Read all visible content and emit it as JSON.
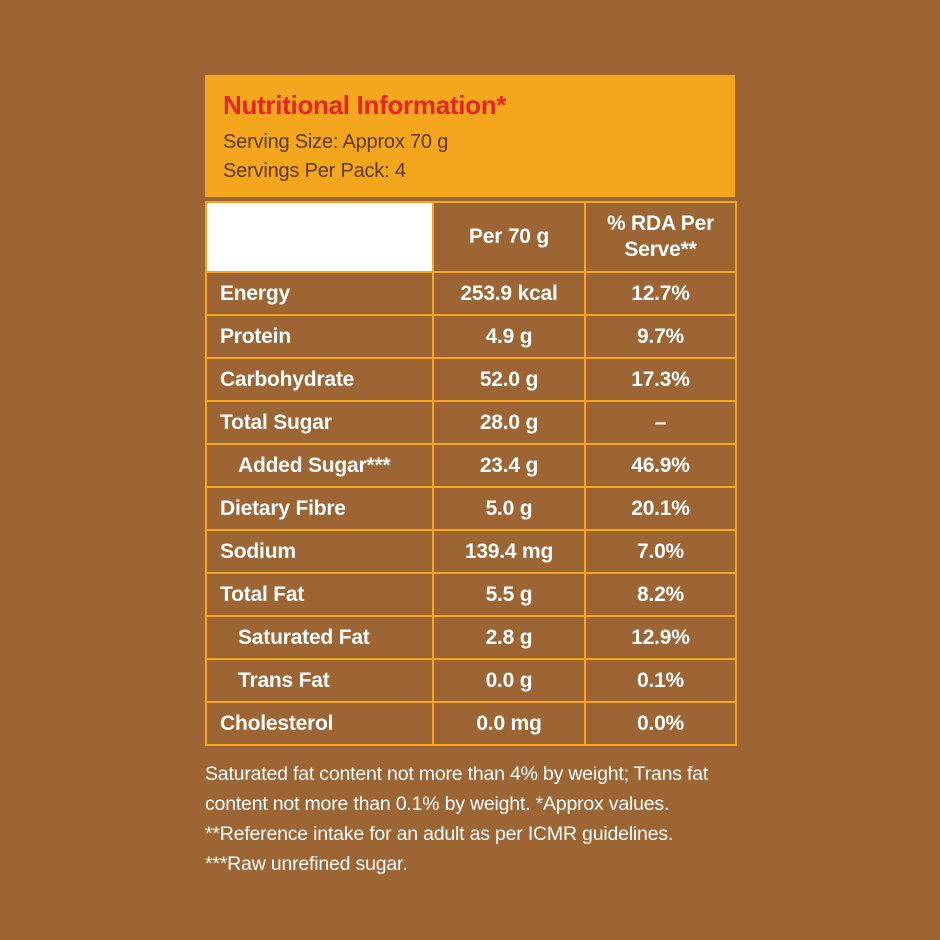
{
  "header": {
    "title": "Nutritional Information*",
    "serving_size": "Serving Size: Approx 70 g",
    "servings_per_pack": "Servings Per Pack: 4"
  },
  "table": {
    "headers": [
      "",
      "Per 70 g",
      "% RDA Per Serve**"
    ],
    "rows": [
      {
        "nutrient": "Energy",
        "value": "253.9 kcal",
        "rda": "12.7%",
        "indent": false
      },
      {
        "nutrient": "Protein",
        "value": "4.9 g",
        "rda": "9.7%",
        "indent": false
      },
      {
        "nutrient": "Carbohydrate",
        "value": "52.0 g",
        "rda": "17.3%",
        "indent": false
      },
      {
        "nutrient": "Total Sugar",
        "value": "28.0 g",
        "rda": "–",
        "indent": false
      },
      {
        "nutrient": "Added Sugar***",
        "value": "23.4 g",
        "rda": "46.9%",
        "indent": true
      },
      {
        "nutrient": "Dietary Fibre",
        "value": "5.0 g",
        "rda": "20.1%",
        "indent": false
      },
      {
        "nutrient": "Sodium",
        "value": "139.4 mg",
        "rda": "7.0%",
        "indent": false
      },
      {
        "nutrient": "Total Fat",
        "value": "5.5 g",
        "rda": "8.2%",
        "indent": false
      },
      {
        "nutrient": "Saturated Fat",
        "value": "2.8 g",
        "rda": "12.9%",
        "indent": true
      },
      {
        "nutrient": "Trans Fat",
        "value": "0.0 g",
        "rda": "0.1%",
        "indent": true
      },
      {
        "nutrient": "Cholesterol",
        "value": "0.0 mg",
        "rda": "0.0%",
        "indent": false
      }
    ]
  },
  "footnote": "Saturated fat content not more than 4% by weight; Trans fat content not more than 0.1% by weight. *Approx values. **Reference intake for an adult as per ICMR guidelines. ***Raw unrefined sugar.",
  "colors": {
    "background": "#9C6533",
    "accent_yellow": "#F4A61C",
    "title_red": "#E52528",
    "header_text_dark": "#5C3A15",
    "table_text_white": "#FFFFFF"
  }
}
